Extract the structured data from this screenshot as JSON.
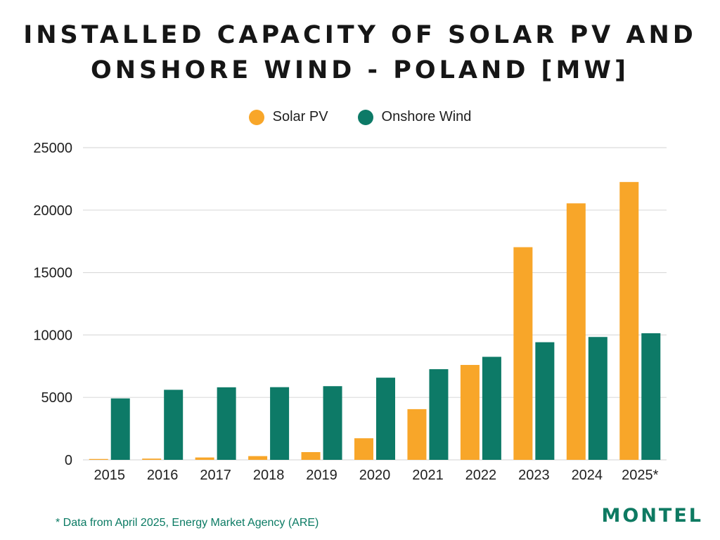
{
  "title_line1": "INSTALLED CAPACITY OF SOLAR PV AND",
  "title_line2": "ONSHORE WIND - POLAND [MW]",
  "footnote": "* Data from April 2025, Energy Market Agency (ARE)",
  "logo": "MONTEL",
  "colors": {
    "solar": "#F8A629",
    "wind": "#0D7A67",
    "grid": "#DCDCDC",
    "text": "#1f1f1f"
  },
  "chart_data": {
    "type": "bar",
    "title": "INSTALLED CAPACITY OF SOLAR PV AND ONSHORE WIND - POLAND [MW]",
    "xlabel": "",
    "ylabel": "",
    "ylim": [
      0,
      25000
    ],
    "yticks": [
      0,
      5000,
      10000,
      15000,
      20000,
      25000
    ],
    "grid": true,
    "legend_position": "top-center",
    "categories": [
      "2015",
      "2016",
      "2017",
      "2018",
      "2019",
      "2020",
      "2021",
      "2022",
      "2023",
      "2024",
      "2025*"
    ],
    "series": [
      {
        "name": "Solar PV",
        "color": "#F8A629",
        "values": [
          70,
          100,
          190,
          300,
          620,
          1730,
          4060,
          7600,
          17030,
          20540,
          22250
        ]
      },
      {
        "name": "Onshore Wind",
        "color": "#0D7A67",
        "values": [
          4920,
          5610,
          5810,
          5820,
          5900,
          6580,
          7260,
          8250,
          9420,
          9840,
          10140
        ]
      }
    ]
  }
}
